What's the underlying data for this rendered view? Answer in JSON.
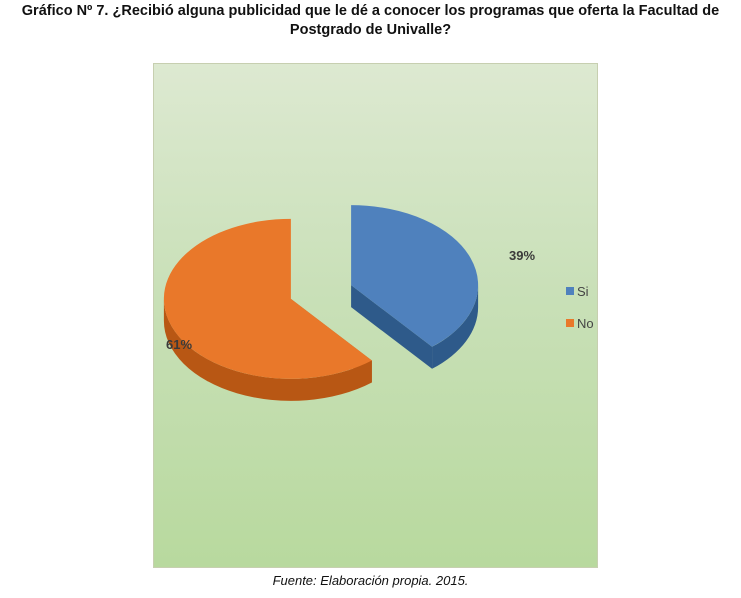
{
  "title_line1": "Gráfico Nº 7. ¿Recibió alguna publicidad que le dé a conocer los programas que oferta la Facultad de",
  "title_line2": "Postgrado de Univalle?",
  "source": "Fuente: Elaboración propia. 2015.",
  "chart_data": {
    "type": "pie",
    "style": "3d-exploded",
    "slices": [
      {
        "label": "Si",
        "value": 39,
        "display": "39%",
        "color": "#4f81bd",
        "side_color": "#2e5a8a"
      },
      {
        "label": "No",
        "value": 61,
        "display": "61%",
        "color": "#e9782a",
        "side_color": "#b85714"
      }
    ],
    "legend": {
      "position": "right",
      "entries": [
        "Si",
        "No"
      ]
    }
  }
}
